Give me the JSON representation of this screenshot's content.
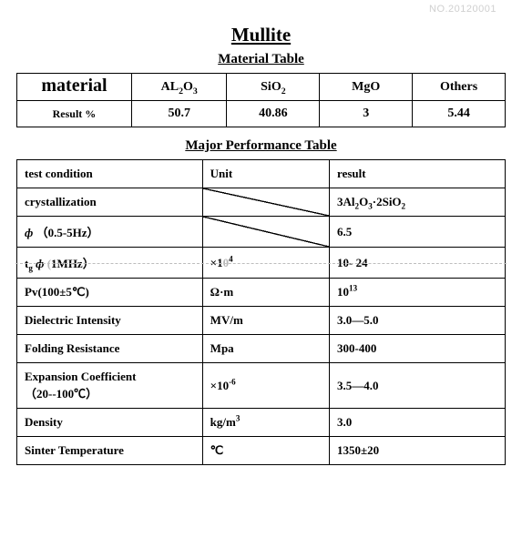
{
  "doc_no": "NO.20120001",
  "title": "Mullite",
  "material_table": {
    "heading": "Material Table",
    "row_header": "material",
    "columns_html": [
      "AL<sub>2</sub>O<sub>3</sub>",
      "SiO<sub>2</sub>",
      "MgO",
      "Others"
    ],
    "result_label": "Result %",
    "results": [
      "50.7",
      "40.86",
      "3",
      "5.44"
    ]
  },
  "performance_table": {
    "heading": "Major Performance Table",
    "headers": [
      "test condition",
      "Unit",
      "result"
    ],
    "rows": [
      {
        "cond_html": "crystallization",
        "unit_html": "",
        "unit_diag": true,
        "result_html": "3Al<sub>2</sub>O<sub>3</sub>·2SiO<sub>2</sub>"
      },
      {
        "cond_html": "<i>ф</i> （0.5-5Hz）",
        "unit_html": "",
        "unit_diag": true,
        "result_html": "6.5"
      },
      {
        "cond_html": "t<sub>g</sub> <i>ф</i> <span class=\"faded-char\">(</span>1MHz）",
        "unit_html": "×1<span class=\"faded-char\">0</span><sup>4</sup>",
        "result_html": "10- 24",
        "dashed": true
      },
      {
        "cond_html": "Pv(100±5℃)",
        "unit_html": "Ω·m",
        "result_html": "10<sup>13</sup>"
      },
      {
        "cond_html": "Dielectric Intensity",
        "unit_html": "MV/m",
        "result_html": "3.0—5.0"
      },
      {
        "cond_html": "Folding Resistance",
        "unit_html": "Mpa",
        "result_html": "300-400"
      },
      {
        "cond_html": "Expansion Coefficient<br>（20--100℃）",
        "unit_html": "×10<sup>-6</sup>",
        "result_html": "3.5—4.0"
      },
      {
        "cond_html": "Density",
        "unit_html": "kg/m<sup>3</sup>",
        "result_html": "3.0"
      },
      {
        "cond_html": "Sinter Temperature",
        "unit_html": "℃",
        "result_html": "1350±20"
      }
    ]
  }
}
